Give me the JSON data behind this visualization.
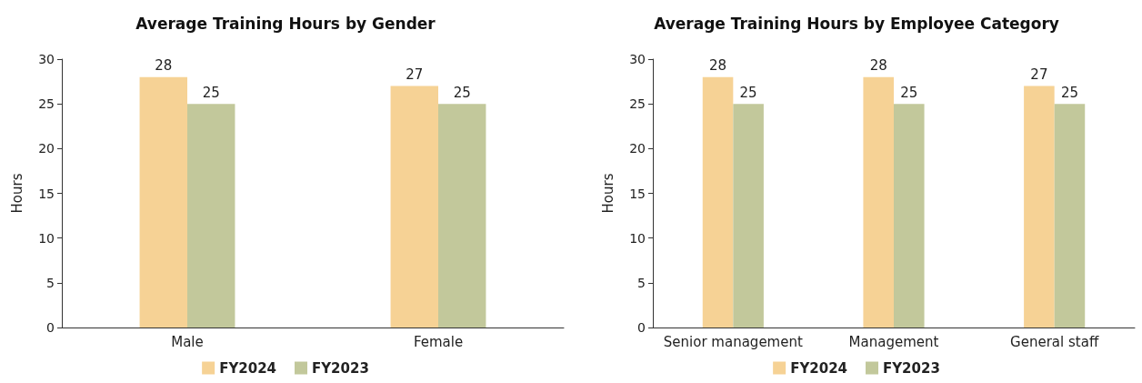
{
  "chart_data": [
    {
      "type": "bar",
      "title": "Average Training Hours by Gender",
      "ylabel": "Hours",
      "categories": [
        "Male",
        "Female"
      ],
      "series": [
        {
          "name": "FY2024",
          "color": "#f6d295",
          "values": [
            28,
            27
          ]
        },
        {
          "name": "FY2023",
          "color": "#c2c89b",
          "values": [
            25,
            25
          ]
        }
      ],
      "ylim": [
        0,
        30
      ],
      "yticks": [
        0,
        5,
        10,
        15,
        20,
        25,
        30
      ],
      "grid": false,
      "legend": "bottom",
      "data_labels": true
    },
    {
      "type": "bar",
      "title": "Average Training Hours by Employee Category",
      "ylabel": "Hours",
      "categories": [
        "Senior management",
        "Management",
        "General staff"
      ],
      "series": [
        {
          "name": "FY2024",
          "color": "#f6d295",
          "values": [
            28,
            28,
            27
          ]
        },
        {
          "name": "FY2023",
          "color": "#c2c89b",
          "values": [
            25,
            25,
            25
          ]
        }
      ],
      "ylim": [
        0,
        30
      ],
      "yticks": [
        0,
        5,
        10,
        15,
        20,
        25,
        30
      ],
      "grid": false,
      "legend": "bottom",
      "data_labels": true
    }
  ]
}
